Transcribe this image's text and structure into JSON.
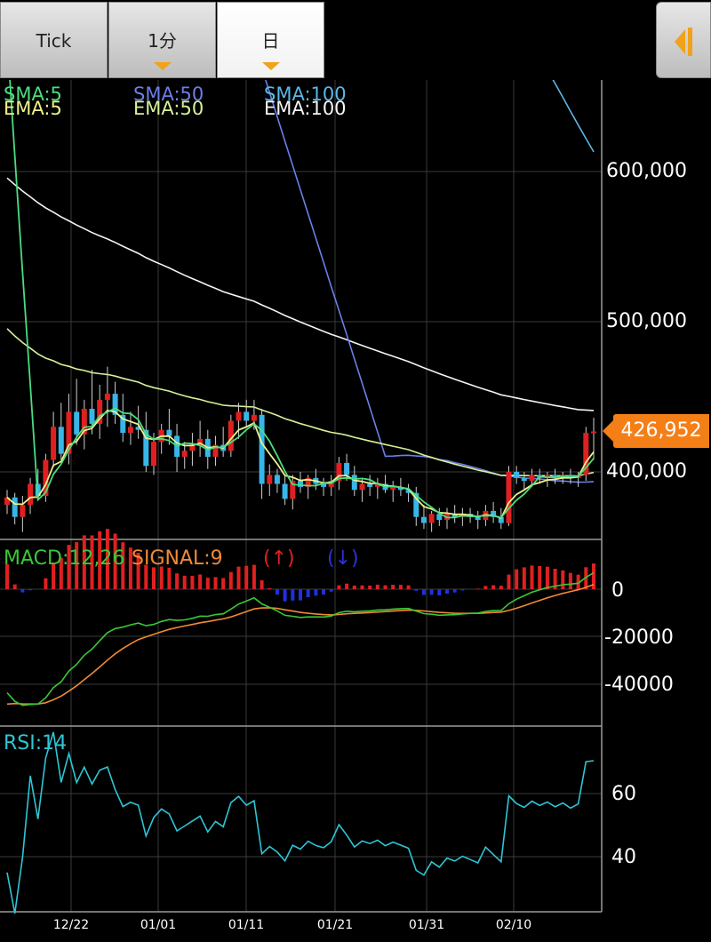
{
  "tabs": [
    {
      "label": "Tick",
      "has_dropdown": false,
      "selected": false
    },
    {
      "label": "1分",
      "has_dropdown": true,
      "selected": false
    },
    {
      "label": "日",
      "has_dropdown": true,
      "selected": true
    }
  ],
  "collapse_icon": "collapse-left-icon",
  "colors": {
    "sma5": "#4ade80",
    "ema5": "#eef08a",
    "sma50": "#6b7fe8",
    "ema50": "#d6f19a",
    "sma100": "#5ab8e6",
    "ema100": "#f4f4f4",
    "up": "#e02020",
    "down": "#38b6e8",
    "macd": "#39c835",
    "signal": "#f08a36",
    "rsi": "#2ec6d6",
    "price_tag": "#f57f17"
  },
  "legend": {
    "sma5": "SMA:5",
    "ema5": "EMA:5",
    "sma50": "SMA:50",
    "ema50": "EMA:50",
    "sma100": "SMA:100",
    "ema100": "EMA:100"
  },
  "macd_legend": {
    "macd": "MACD:12,26",
    "signal": "SIGNAL:9",
    "up": "(↑)",
    "down": "(↓)"
  },
  "rsi_legend": "RSI:14",
  "price_axis": [
    "600,000",
    "500,000",
    "400,000"
  ],
  "macd_axis": [
    "0",
    "-20000",
    "-40000"
  ],
  "rsi_axis": [
    "60",
    "40"
  ],
  "current_price": "426,952",
  "dates": [
    "12/22",
    "01/01",
    "01/11",
    "01/21",
    "01/31",
    "02/10"
  ],
  "chart_data": {
    "type": "candlestick",
    "price_range": [
      345000,
      650000
    ],
    "candles": [
      [
        378000,
        388000,
        372000,
        383000
      ],
      [
        383000,
        386000,
        365000,
        370000
      ],
      [
        370000,
        384000,
        360000,
        378000
      ],
      [
        378000,
        396000,
        372000,
        392000
      ],
      [
        392000,
        402000,
        382000,
        384000
      ],
      [
        384000,
        412000,
        380000,
        408000
      ],
      [
        408000,
        440000,
        403000,
        430000
      ],
      [
        430000,
        446000,
        408000,
        412000
      ],
      [
        412000,
        452000,
        405000,
        440000
      ],
      [
        440000,
        462000,
        418000,
        425000
      ],
      [
        425000,
        448000,
        415000,
        442000
      ],
      [
        442000,
        468000,
        425000,
        432000
      ],
      [
        432000,
        458000,
        422000,
        448000
      ],
      [
        448000,
        470000,
        430000,
        452000
      ],
      [
        452000,
        460000,
        432000,
        438000
      ],
      [
        438000,
        452000,
        420000,
        426000
      ],
      [
        426000,
        440000,
        418000,
        430000
      ],
      [
        430000,
        444000,
        422000,
        428000
      ],
      [
        428000,
        440000,
        400000,
        404000
      ],
      [
        404000,
        426000,
        398000,
        420000
      ],
      [
        420000,
        432000,
        412000,
        428000
      ],
      [
        428000,
        442000,
        418000,
        424000
      ],
      [
        424000,
        432000,
        400000,
        410000
      ],
      [
        410000,
        420000,
        402000,
        414000
      ],
      [
        414000,
        426000,
        404000,
        418000
      ],
      [
        418000,
        434000,
        410000,
        422000
      ],
      [
        422000,
        428000,
        402000,
        410000
      ],
      [
        410000,
        424000,
        404000,
        418000
      ],
      [
        418000,
        430000,
        410000,
        414000
      ],
      [
        414000,
        438000,
        410000,
        434000
      ],
      [
        434000,
        446000,
        422000,
        440000
      ],
      [
        440000,
        448000,
        430000,
        434000
      ],
      [
        434000,
        448000,
        428000,
        438000
      ],
      [
        438000,
        442000,
        382000,
        392000
      ],
      [
        392000,
        405000,
        384000,
        398000
      ],
      [
        398000,
        402000,
        386000,
        392000
      ],
      [
        392000,
        398000,
        378000,
        382000
      ],
      [
        382000,
        398000,
        375000,
        394000
      ],
      [
        394000,
        400000,
        386000,
        390000
      ],
      [
        390000,
        398000,
        382000,
        396000
      ],
      [
        396000,
        402000,
        388000,
        392000
      ],
      [
        392000,
        396000,
        384000,
        390000
      ],
      [
        390000,
        398000,
        384000,
        394000
      ],
      [
        394000,
        410000,
        388000,
        406000
      ],
      [
        406000,
        412000,
        394000,
        398000
      ],
      [
        398000,
        404000,
        384000,
        388000
      ],
      [
        388000,
        396000,
        380000,
        392000
      ],
      [
        392000,
        398000,
        384000,
        390000
      ],
      [
        390000,
        396000,
        382000,
        392000
      ],
      [
        392000,
        398000,
        386000,
        388000
      ],
      [
        388000,
        394000,
        380000,
        390000
      ],
      [
        390000,
        396000,
        384000,
        388000
      ],
      [
        388000,
        392000,
        380000,
        386000
      ],
      [
        386000,
        390000,
        364000,
        370000
      ],
      [
        370000,
        378000,
        362000,
        366000
      ],
      [
        366000,
        374000,
        360000,
        372000
      ],
      [
        372000,
        376000,
        364000,
        368000
      ],
      [
        368000,
        376000,
        362000,
        372000
      ],
      [
        372000,
        378000,
        366000,
        370000
      ],
      [
        370000,
        376000,
        364000,
        372000
      ],
      [
        372000,
        376000,
        366000,
        370000
      ],
      [
        370000,
        374000,
        362000,
        368000
      ],
      [
        368000,
        378000,
        364000,
        374000
      ],
      [
        374000,
        380000,
        366000,
        370000
      ],
      [
        370000,
        376000,
        362000,
        366000
      ],
      [
        366000,
        404000,
        364000,
        400000
      ],
      [
        400000,
        404000,
        392000,
        396000
      ],
      [
        396000,
        400000,
        388000,
        394000
      ],
      [
        394000,
        402000,
        390000,
        398000
      ],
      [
        398000,
        402000,
        392000,
        396000
      ],
      [
        396000,
        400000,
        390000,
        398000
      ],
      [
        398000,
        402000,
        392000,
        396000
      ],
      [
        396000,
        400000,
        392000,
        398000
      ],
      [
        398000,
        402000,
        392000,
        396000
      ],
      [
        396000,
        400000,
        390000,
        398000
      ],
      [
        398000,
        430000,
        394000,
        426000
      ],
      [
        426000,
        436000,
        408000,
        426952
      ]
    ],
    "macd_range": [
      -50000,
      10000
    ],
    "rsi_range": [
      20,
      82
    ]
  }
}
